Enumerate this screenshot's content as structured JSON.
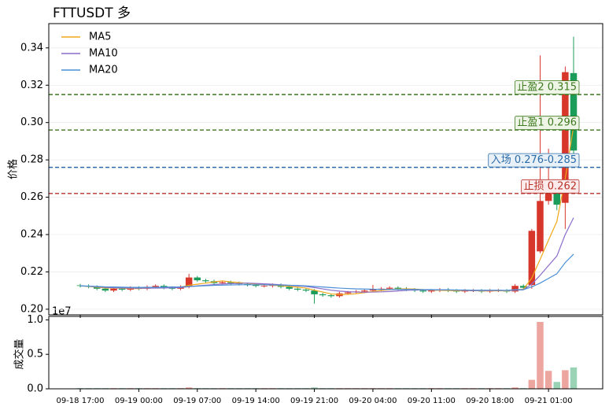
{
  "chart_data": {
    "type": "candlestick",
    "title": "FTTUSDT  多",
    "ylabel": "价格",
    "volume_ylabel": "成交量",
    "volume_offset_text": "1e7",
    "x": [
      "09-18 17:00",
      "09-18 18:00",
      "09-18 19:00",
      "09-18 20:00",
      "09-18 21:00",
      "09-18 22:00",
      "09-18 23:00",
      "09-19 00:00",
      "09-19 01:00",
      "09-19 02:00",
      "09-19 03:00",
      "09-19 04:00",
      "09-19 05:00",
      "09-19 06:00",
      "09-19 07:00",
      "09-19 08:00",
      "09-19 09:00",
      "09-19 10:00",
      "09-19 11:00",
      "09-19 12:00",
      "09-19 13:00",
      "09-19 14:00",
      "09-19 15:00",
      "09-19 16:00",
      "09-19 17:00",
      "09-19 18:00",
      "09-19 19:00",
      "09-19 20:00",
      "09-19 21:00",
      "09-19 22:00",
      "09-19 23:00",
      "09-20 00:00",
      "09-20 01:00",
      "09-20 02:00",
      "09-20 03:00",
      "09-20 04:00",
      "09-20 05:00",
      "09-20 06:00",
      "09-20 07:00",
      "09-20 08:00",
      "09-20 09:00",
      "09-20 10:00",
      "09-20 11:00",
      "09-20 12:00",
      "09-20 13:00",
      "09-20 14:00",
      "09-20 15:00",
      "09-20 16:00",
      "09-20 17:00",
      "09-20 18:00",
      "09-20 19:00",
      "09-20 20:00",
      "09-20 21:00",
      "09-20 22:00",
      "09-20 23:00",
      "09-21 00:00",
      "09-21 01:00",
      "09-21 02:00",
      "09-21 03:00",
      "09-21 04:00"
    ],
    "xticks": [
      "09-18 17:00",
      "09-19 00:00",
      "09-19 07:00",
      "09-19 14:00",
      "09-19 21:00",
      "09-20 04:00",
      "09-20 11:00",
      "09-20 18:00",
      "09-21 01:00"
    ],
    "open": [
      0.2128,
      0.2125,
      0.212,
      0.211,
      0.21,
      0.211,
      0.2105,
      0.2115,
      0.211,
      0.212,
      0.2125,
      0.2115,
      0.211,
      0.212,
      0.217,
      0.2155,
      0.215,
      0.214,
      0.2145,
      0.214,
      0.2135,
      0.213,
      0.2125,
      0.2125,
      0.213,
      0.212,
      0.211,
      0.2105,
      0.21,
      0.208,
      0.2075,
      0.207,
      0.2085,
      0.209,
      0.2095,
      0.21,
      0.2105,
      0.211,
      0.2115,
      0.211,
      0.2105,
      0.21,
      0.2095,
      0.21,
      0.2105,
      0.21,
      0.2095,
      0.21,
      0.21,
      0.2095,
      0.21,
      0.21,
      0.2095,
      0.2125,
      0.213,
      0.231,
      0.258,
      0.265,
      0.257,
      0.3265
    ],
    "high": [
      0.2136,
      0.2133,
      0.2128,
      0.2118,
      0.2118,
      0.2118,
      0.2123,
      0.2123,
      0.2128,
      0.2133,
      0.2133,
      0.2123,
      0.2128,
      0.219,
      0.2178,
      0.2163,
      0.2158,
      0.2153,
      0.2153,
      0.2148,
      0.2143,
      0.2138,
      0.2133,
      0.2138,
      0.2138,
      0.2128,
      0.2118,
      0.2113,
      0.2108,
      0.2088,
      0.2083,
      0.2093,
      0.2098,
      0.2103,
      0.2108,
      0.213,
      0.2118,
      0.2123,
      0.2123,
      0.2118,
      0.2113,
      0.2108,
      0.2108,
      0.2113,
      0.2113,
      0.2108,
      0.2108,
      0.2108,
      0.2108,
      0.2108,
      0.2108,
      0.2108,
      0.2135,
      0.2133,
      0.243,
      0.336,
      0.286,
      0.265,
      0.33,
      0.346
    ],
    "low": [
      0.2117,
      0.2112,
      0.2102,
      0.2092,
      0.2092,
      0.2097,
      0.2097,
      0.2102,
      0.2102,
      0.2112,
      0.2107,
      0.2102,
      0.2102,
      0.2112,
      0.2147,
      0.2142,
      0.2132,
      0.2132,
      0.2132,
      0.2127,
      0.2122,
      0.2117,
      0.2117,
      0.2117,
      0.2112,
      0.2102,
      0.2097,
      0.2092,
      0.203,
      0.2067,
      0.2062,
      0.2062,
      0.2077,
      0.2082,
      0.2087,
      0.2092,
      0.2097,
      0.2102,
      0.2102,
      0.2097,
      0.2092,
      0.2087,
      0.2087,
      0.2092,
      0.2092,
      0.2087,
      0.2087,
      0.2092,
      0.2087,
      0.2087,
      0.2092,
      0.2087,
      0.2087,
      0.2107,
      0.211,
      0.23,
      0.256,
      0.253,
      0.243,
      0.28
    ],
    "close": [
      0.2125,
      0.212,
      0.211,
      0.21,
      0.211,
      0.2105,
      0.2115,
      0.211,
      0.212,
      0.2125,
      0.2115,
      0.211,
      0.212,
      0.217,
      0.2155,
      0.215,
      0.214,
      0.2145,
      0.214,
      0.2135,
      0.213,
      0.2125,
      0.2125,
      0.213,
      0.212,
      0.211,
      0.2105,
      0.21,
      0.208,
      0.2075,
      0.207,
      0.2085,
      0.209,
      0.2095,
      0.21,
      0.2105,
      0.211,
      0.2115,
      0.211,
      0.2105,
      0.21,
      0.2095,
      0.21,
      0.2105,
      0.21,
      0.2095,
      0.21,
      0.21,
      0.2095,
      0.21,
      0.21,
      0.2095,
      0.2125,
      0.2115,
      0.242,
      0.258,
      0.262,
      0.256,
      0.327,
      0.285
    ],
    "volume": [
      0.01,
      0.01,
      0.01,
      0.01,
      0.01,
      0.01,
      0.01,
      0.01,
      0.01,
      0.01,
      0.01,
      0.01,
      0.01,
      0.02,
      0.01,
      0.01,
      0.01,
      0.01,
      0.01,
      0.01,
      0.01,
      0.01,
      0.01,
      0.01,
      0.01,
      0.01,
      0.01,
      0.01,
      0.02,
      0.01,
      0.01,
      0.01,
      0.01,
      0.01,
      0.01,
      0.01,
      0.01,
      0.01,
      0.01,
      0.01,
      0.01,
      0.01,
      0.01,
      0.01,
      0.01,
      0.01,
      0.01,
      0.01,
      0.01,
      0.01,
      0.01,
      0.01,
      0.02,
      0.01,
      0.13,
      0.97,
      0.26,
      0.1,
      0.27,
      0.31
    ],
    "up_color": "#d7372b",
    "down_color": "#1c9c5a",
    "series": [
      {
        "name": "MA5",
        "color": "#f0a818",
        "values": [
          0.2125,
          0.2122,
          0.2118,
          0.2114,
          0.2113,
          0.2112,
          0.2111,
          0.211,
          0.2113,
          0.2115,
          0.2117,
          0.2117,
          0.2118,
          0.2128,
          0.2134,
          0.214,
          0.2146,
          0.2152,
          0.2146,
          0.2143,
          0.2139,
          0.2135,
          0.2131,
          0.2129,
          0.2126,
          0.2122,
          0.2118,
          0.2113,
          0.2102,
          0.2092,
          0.2082,
          0.2078,
          0.208,
          0.2083,
          0.2089,
          0.2095,
          0.21,
          0.2105,
          0.2108,
          0.2109,
          0.2108,
          0.2105,
          0.2102,
          0.2101,
          0.21,
          0.2099,
          0.21,
          0.21,
          0.2098,
          0.2098,
          0.2099,
          0.2098,
          0.2103,
          0.2107,
          0.2167,
          0.2267,
          0.237,
          0.247,
          0.27,
          0.298
        ]
      },
      {
        "name": "MA10",
        "color": "#8a6cc8",
        "values": [
          0.2125,
          0.2123,
          0.212,
          0.2117,
          0.2115,
          0.2114,
          0.2113,
          0.2112,
          0.2113,
          0.2113,
          0.2114,
          0.2115,
          0.2116,
          0.2121,
          0.2125,
          0.2129,
          0.2132,
          0.2135,
          0.2137,
          0.2138,
          0.214,
          0.2138,
          0.2136,
          0.2134,
          0.2131,
          0.2128,
          0.2125,
          0.2122,
          0.2116,
          0.2109,
          0.2102,
          0.2097,
          0.2094,
          0.2092,
          0.2091,
          0.2092,
          0.2093,
          0.2095,
          0.2098,
          0.2101,
          0.2103,
          0.2104,
          0.2104,
          0.2104,
          0.2103,
          0.2102,
          0.2101,
          0.21,
          0.21,
          0.21,
          0.2101,
          0.21,
          0.2102,
          0.2104,
          0.2135,
          0.2182,
          0.2234,
          0.2285,
          0.24,
          0.249
        ]
      },
      {
        "name": "MA20",
        "color": "#4a8fd6",
        "values": [
          0.2125,
          0.2124,
          0.2122,
          0.212,
          0.2119,
          0.2118,
          0.2117,
          0.2117,
          0.2117,
          0.2117,
          0.2118,
          0.2119,
          0.212,
          0.2122,
          0.2124,
          0.2126,
          0.2128,
          0.2129,
          0.213,
          0.2131,
          0.2131,
          0.2131,
          0.2131,
          0.213,
          0.2129,
          0.2128,
          0.2127,
          0.2125,
          0.2122,
          0.2119,
          0.2116,
          0.2113,
          0.2111,
          0.2109,
          0.2108,
          0.2107,
          0.2106,
          0.2106,
          0.2106,
          0.2106,
          0.2106,
          0.2105,
          0.2105,
          0.2104,
          0.2104,
          0.2103,
          0.2103,
          0.2102,
          0.2102,
          0.2102,
          0.2102,
          0.2101,
          0.2105,
          0.2105,
          0.212,
          0.214,
          0.2165,
          0.219,
          0.225,
          0.2295
        ]
      }
    ],
    "levels": [
      {
        "label": "止盈2 0.315",
        "value": 0.315,
        "color": "#3d7a1f",
        "fill": "#eef5e6"
      },
      {
        "label": "止盈1 0.296",
        "value": 0.296,
        "color": "#3d7a1f",
        "fill": "#eef5e6"
      },
      {
        "label": "入场 0.276-0.285",
        "value": 0.276,
        "color": "#2b6ca8",
        "fill": "#e8f0f8"
      },
      {
        "label": "止损 0.262",
        "value": 0.262,
        "color": "#b8302a",
        "fill": "#fbeceb"
      }
    ],
    "ylim": [
      0.197,
      0.353
    ],
    "yticks": [
      {
        "value": 0.2,
        "label": "0.20"
      },
      {
        "value": 0.22,
        "label": "0.22"
      },
      {
        "value": 0.24,
        "label": "0.24"
      },
      {
        "value": 0.26,
        "label": "0.26"
      },
      {
        "value": 0.28,
        "label": "0.28"
      },
      {
        "value": 0.3,
        "label": "0.30"
      },
      {
        "value": 0.32,
        "label": "0.32"
      },
      {
        "value": 0.34,
        "label": "0.34"
      }
    ],
    "volume_ylim": [
      0,
      1.05
    ],
    "volume_yticks": [
      {
        "value": 0,
        "label": "0.0"
      },
      {
        "value": 0.5,
        "label": "0.5"
      },
      {
        "value": 1,
        "label": "1.0"
      }
    ],
    "grid": true,
    "legend": "upper left"
  }
}
